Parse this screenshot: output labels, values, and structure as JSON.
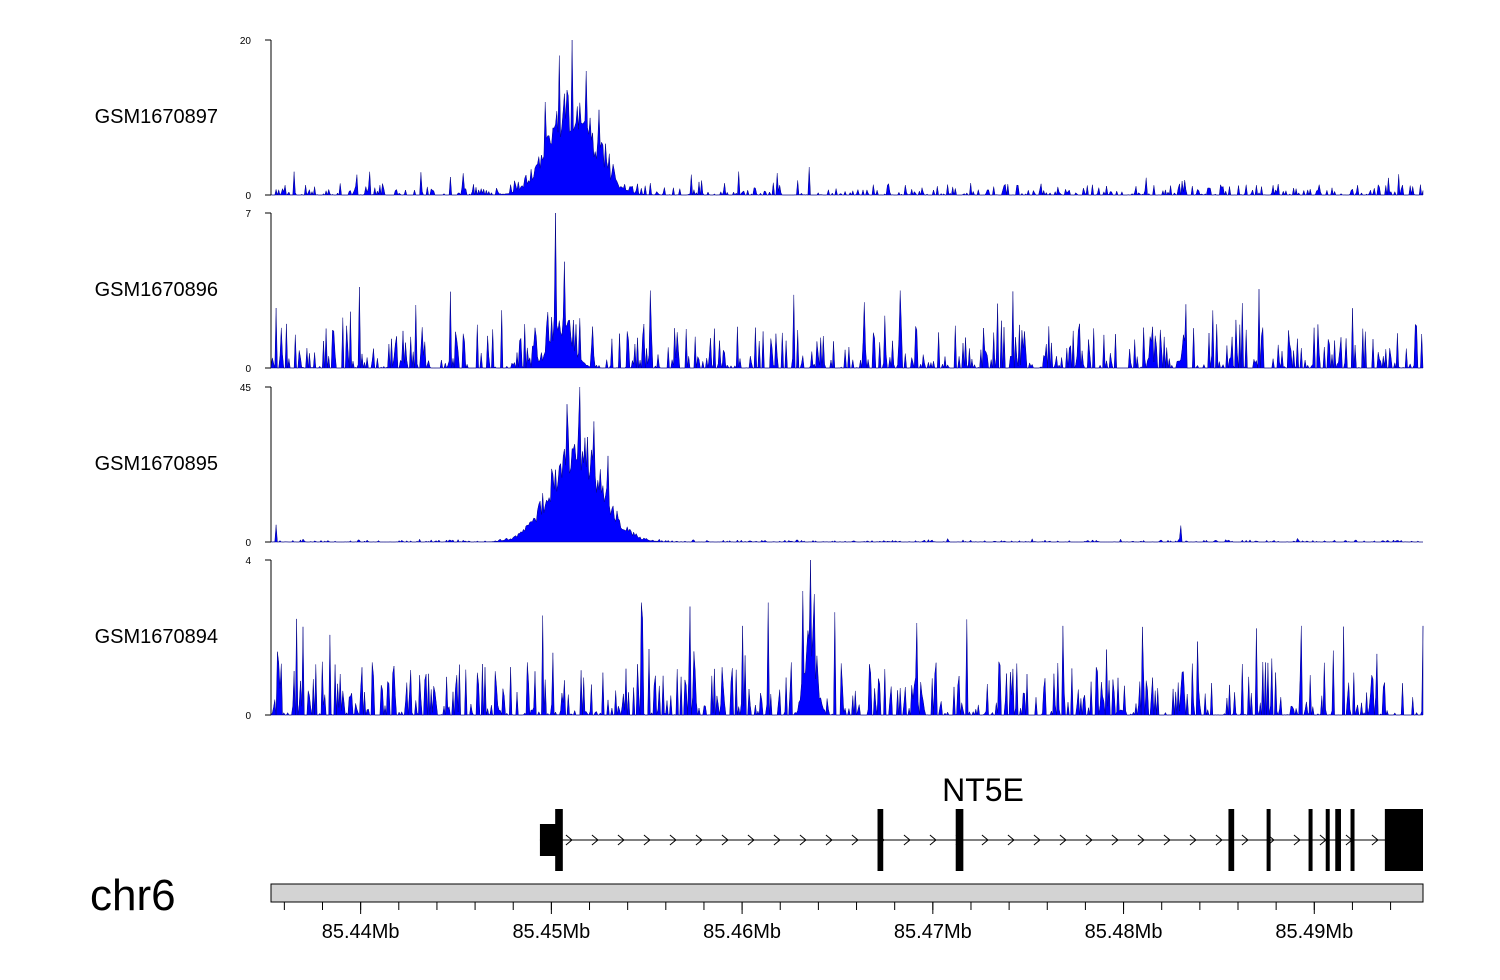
{
  "chart_data": {
    "type": "area",
    "genome_coordinates": {
      "start_mb": 85.4353,
      "end_mb": 85.4957
    },
    "tracks": [
      {
        "name": "GSM1670897",
        "ymax": 20,
        "ymax_label": "20",
        "ymin_label": "0",
        "color": "#0000ff",
        "peak": {
          "center_mb": 85.4511,
          "width_mb": 0.0025,
          "height": 14
        },
        "noise_level": 1.6,
        "spikes": [
          {
            "x_mb": 85.4511,
            "y": 20
          },
          {
            "x_mb": 85.4504,
            "y": 18
          },
          {
            "x_mb": 85.4518,
            "y": 16
          },
          {
            "x_mb": 85.4497,
            "y": 12
          },
          {
            "x_mb": 85.4525,
            "y": 11
          },
          {
            "x_mb": 85.4635,
            "y": 3.6
          },
          {
            "x_mb": 85.4405,
            "y": 3
          },
          {
            "x_mb": 85.4939,
            "y": 2.2
          },
          {
            "x_mb": 85.4831,
            "y": 1.8
          }
        ]
      },
      {
        "name": "GSM1670896",
        "ymax": 7,
        "ymax_label": "7",
        "ymin_label": "0",
        "color": "#0000ff",
        "peak": {
          "center_mb": 85.4505,
          "width_mb": 0.0012,
          "height": 2.5
        },
        "noise_level": 2.0,
        "spikes": [
          {
            "x_mb": 85.4502,
            "y": 7
          },
          {
            "x_mb": 85.4507,
            "y": 4.8
          },
          {
            "x_mb": 85.4552,
            "y": 3.5
          },
          {
            "x_mb": 85.4627,
            "y": 3.3
          },
          {
            "x_mb": 85.4683,
            "y": 3.5
          },
          {
            "x_mb": 85.4847,
            "y": 2.6
          },
          {
            "x_mb": 85.492,
            "y": 2.7
          }
        ]
      },
      {
        "name": "GSM1670895",
        "ymax": 45,
        "ymax_label": "45",
        "ymin_label": "0",
        "color": "#0000ff",
        "peak": {
          "center_mb": 85.4513,
          "width_mb": 0.0028,
          "height": 34
        },
        "noise_level": 0.6,
        "spikes": [
          {
            "x_mb": 85.4515,
            "y": 45
          },
          {
            "x_mb": 85.4508,
            "y": 40
          },
          {
            "x_mb": 85.4522,
            "y": 35
          },
          {
            "x_mb": 85.453,
            "y": 25
          },
          {
            "x_mb": 85.483,
            "y": 4.8
          },
          {
            "x_mb": 85.4356,
            "y": 5
          }
        ]
      },
      {
        "name": "GSM1670894",
        "ymax": 4,
        "ymax_label": "4",
        "ymin_label": "0",
        "color": "#0000ff",
        "peak": {
          "center_mb": 85.4636,
          "width_mb": 0.0006,
          "height": 2.5
        },
        "noise_level": 1.4,
        "spikes": [
          {
            "x_mb": 85.4636,
            "y": 4
          },
          {
            "x_mb": 85.4632,
            "y": 3.2
          },
          {
            "x_mb": 85.4547,
            "y": 2.9
          },
          {
            "x_mb": 85.4573,
            "y": 2.8
          },
          {
            "x_mb": 85.4614,
            "y": 2.9
          },
          {
            "x_mb": 85.46,
            "y": 2.3
          },
          {
            "x_mb": 85.4548,
            "y": 2.5
          },
          {
            "x_mb": 85.4768,
            "y": 2.3
          },
          {
            "x_mb": 85.4893,
            "y": 2.3
          },
          {
            "x_mb": 85.4957,
            "y": 2.3
          }
        ]
      }
    ],
    "gene": {
      "name": "NT5E",
      "strand": "+",
      "start_mb": 85.4494,
      "end_mb": 85.4957,
      "exons": [
        {
          "start_mb": 85.4494,
          "end_mb": 85.4504,
          "thick": false
        },
        {
          "start_mb": 85.4502,
          "end_mb": 85.4506,
          "thick": true
        },
        {
          "start_mb": 85.4671,
          "end_mb": 85.4674,
          "thick": true
        },
        {
          "start_mb": 85.4712,
          "end_mb": 85.4716,
          "thick": true
        },
        {
          "start_mb": 85.4855,
          "end_mb": 85.4858,
          "thick": true
        },
        {
          "start_mb": 85.4875,
          "end_mb": 85.4877,
          "thick": true
        },
        {
          "start_mb": 85.4897,
          "end_mb": 85.4899,
          "thick": true
        },
        {
          "start_mb": 85.4906,
          "end_mb": 85.4908,
          "thick": true
        },
        {
          "start_mb": 85.4911,
          "end_mb": 85.4914,
          "thick": true
        },
        {
          "start_mb": 85.4919,
          "end_mb": 85.4921,
          "thick": true
        },
        {
          "start_mb": 85.4937,
          "end_mb": 85.4957,
          "thick": true
        }
      ]
    },
    "chromosome": "chr6",
    "x_axis": {
      "major_ticks": [
        {
          "value_mb": 85.44,
          "label": "85.44Mb"
        },
        {
          "value_mb": 85.45,
          "label": "85.45Mb"
        },
        {
          "value_mb": 85.46,
          "label": "85.46Mb"
        },
        {
          "value_mb": 85.47,
          "label": "85.47Mb"
        },
        {
          "value_mb": 85.48,
          "label": "85.48Mb"
        },
        {
          "value_mb": 85.49,
          "label": "85.49Mb"
        }
      ],
      "minor_tick_step_mb": 0.002
    }
  }
}
